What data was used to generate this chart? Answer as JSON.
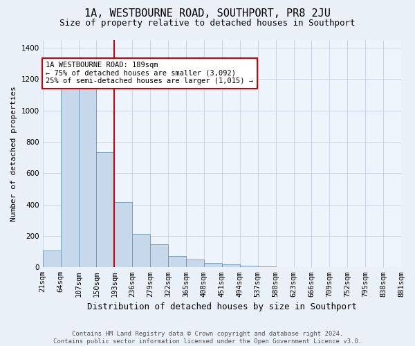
{
  "title": "1A, WESTBOURNE ROAD, SOUTHPORT, PR8 2JU",
  "subtitle": "Size of property relative to detached houses in Southport",
  "xlabel": "Distribution of detached houses by size in Southport",
  "ylabel": "Number of detached properties",
  "bar_labels": [
    "21sqm",
    "64sqm",
    "107sqm",
    "150sqm",
    "193sqm",
    "236sqm",
    "279sqm",
    "322sqm",
    "365sqm",
    "408sqm",
    "451sqm",
    "494sqm",
    "537sqm",
    "580sqm",
    "623sqm",
    "666sqm",
    "709sqm",
    "752sqm",
    "795sqm",
    "838sqm",
    "881sqm"
  ],
  "bar_heights": [
    105,
    1150,
    1150,
    735,
    415,
    215,
    148,
    73,
    48,
    30,
    18,
    10,
    5,
    3,
    2,
    2,
    1,
    1,
    1,
    1
  ],
  "bar_color": "#c8d8eb",
  "bar_edge_color": "#6699bb",
  "vline_position": 4,
  "vline_color": "#cc0000",
  "annotation_text": "1A WESTBOURNE ROAD: 189sqm\n← 75% of detached houses are smaller (3,092)\n25% of semi-detached houses are larger (1,015) →",
  "annotation_box_facecolor": "#ffffff",
  "annotation_box_edgecolor": "#cc0000",
  "ylim": [
    0,
    1450
  ],
  "yticks": [
    0,
    200,
    400,
    600,
    800,
    1000,
    1200,
    1400
  ],
  "footer": "Contains HM Land Registry data © Crown copyright and database right 2024.\nContains public sector information licensed under the Open Government Licence v3.0.",
  "bg_color": "#eaf0f8",
  "plot_bg_color": "#eef4fb",
  "grid_color": "#c8d4e0",
  "title_fontsize": 11,
  "subtitle_fontsize": 9,
  "ylabel_fontsize": 8,
  "xlabel_fontsize": 9,
  "tick_fontsize": 7.5,
  "annotation_fontsize": 7.5,
  "footer_fontsize": 6.5
}
